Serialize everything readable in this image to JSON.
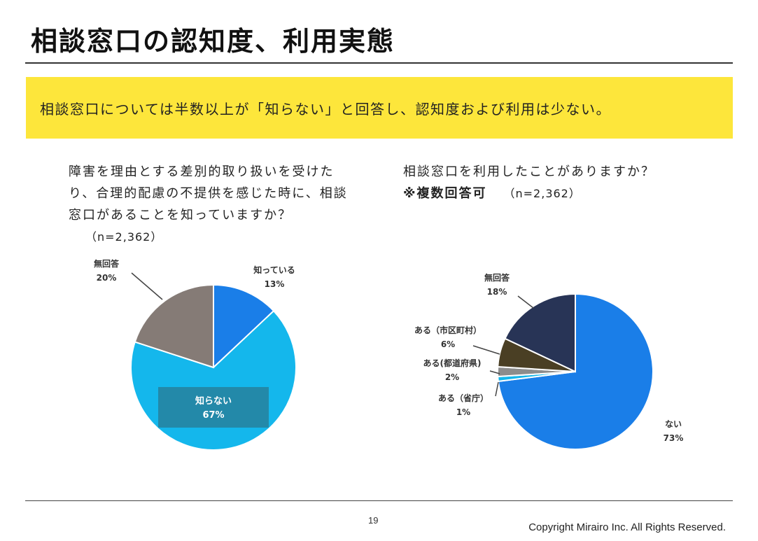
{
  "title": "相談窓口の認知度、利用実態",
  "banner": "相談窓口については半数以上が「知らない」と回答し、認知度および利用は少ない。",
  "chart_data": [
    {
      "type": "pie",
      "question": "障害を理由とする差別的取り扱いを受けたり、合理的配慮の不提供を感じた時に、相談窓口があることを知っていますか？",
      "n": "（n=2,362）",
      "slices": [
        {
          "name": "知っている",
          "value": 13,
          "label": "13%",
          "color": "#1a7ee8"
        },
        {
          "name": "知らない",
          "value": 67,
          "label": "67%",
          "color": "#14b7ec"
        },
        {
          "name": "無回答",
          "value": 20,
          "label": "20%",
          "color": "#857b76"
        }
      ]
    },
    {
      "type": "pie",
      "question": "相談窓口を利用したことがありますか？",
      "note": "※複数回答可",
      "n": "（n=2,362）",
      "slices": [
        {
          "name": "ない",
          "value": 73,
          "label": "73%",
          "color": "#1a7ee8"
        },
        {
          "name": "ある（省庁）",
          "value": 1,
          "label": "1%",
          "color": "#14b7ec"
        },
        {
          "name": "ある(都道府県)",
          "value": 2,
          "label": "2%",
          "color": "#8c8c8c"
        },
        {
          "name": "ある（市区町村）",
          "value": 6,
          "label": "6%",
          "color": "#4a3f24"
        },
        {
          "name": "無回答",
          "value": 18,
          "label": "18%",
          "color": "#283456"
        }
      ]
    }
  ],
  "page_number": "19",
  "copyright": "Copyright Mirairo Inc. All Rights Reserved."
}
